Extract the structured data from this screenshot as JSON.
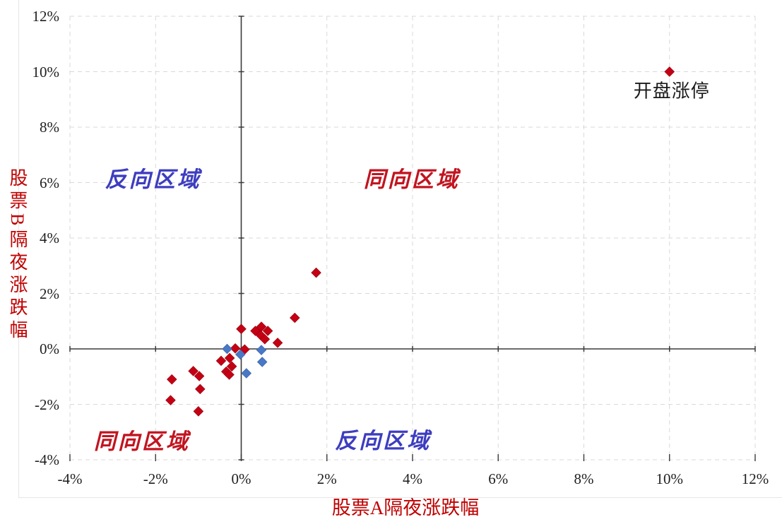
{
  "chart_data": {
    "type": "scatter",
    "title": "",
    "xlabel": "股票A隔夜涨跌幅",
    "ylabel": "股票B隔夜涨跌幅",
    "xlim": [
      -4,
      12
    ],
    "ylim": [
      -4,
      12
    ],
    "x_tick_values": [
      -4,
      -2,
      0,
      2,
      4,
      6,
      8,
      10,
      12
    ],
    "x_tick_labels": [
      "-4%",
      "-2%",
      "0%",
      "2%",
      "4%",
      "6%",
      "8%",
      "10%",
      "12%"
    ],
    "y_tick_values": [
      12,
      10,
      8,
      6,
      4,
      2,
      0,
      -2,
      -4
    ],
    "y_tick_labels": [
      "12%",
      "10%",
      "8%",
      "6%",
      "4%",
      "2%",
      "0%",
      "-2%",
      "-4%"
    ],
    "grid": "dashed",
    "legend": "none",
    "axis_cross": [
      0,
      0
    ],
    "colors": {
      "grid": "#d9d9d9",
      "axis": "#3a3a3a",
      "red_marker": "#c50014",
      "red_marker_edge": "#a00010",
      "blue_marker": "#4979c6",
      "blue_marker_edge": "#3e67ac",
      "axis_title_red": "#c00000",
      "tick_text": "#1f1f1f"
    },
    "series": [
      {
        "name": "red-diamonds",
        "marker": "diamond",
        "color": "#c50014",
        "edge": "#a00010",
        "points": [
          [
            10.0,
            10.0
          ],
          [
            1.75,
            2.75
          ],
          [
            1.25,
            1.12
          ],
          [
            0.85,
            0.22
          ],
          [
            0.0,
            0.72
          ],
          [
            0.33,
            0.65
          ],
          [
            0.47,
            0.8
          ],
          [
            0.62,
            0.65
          ],
          [
            0.45,
            0.5
          ],
          [
            0.55,
            0.35
          ],
          [
            -0.14,
            0.02
          ],
          [
            0.08,
            -0.02
          ],
          [
            -0.47,
            -0.43
          ],
          [
            -0.27,
            -0.33
          ],
          [
            -0.22,
            -0.63
          ],
          [
            -0.35,
            -0.82
          ],
          [
            -0.28,
            -0.93
          ],
          [
            -1.12,
            -0.8
          ],
          [
            -0.98,
            -0.98
          ],
          [
            -0.96,
            -1.45
          ],
          [
            -1.0,
            -2.25
          ],
          [
            -1.62,
            -1.1
          ],
          [
            -1.65,
            -1.85
          ]
        ]
      },
      {
        "name": "blue-diamonds",
        "marker": "diamond",
        "color": "#4979c6",
        "edge": "#3e67ac",
        "points": [
          [
            -0.33,
            0.0
          ],
          [
            -0.02,
            -0.2
          ],
          [
            0.47,
            -0.04
          ],
          [
            0.49,
            -0.47
          ],
          [
            0.12,
            -0.88
          ]
        ]
      }
    ],
    "annotations": [
      {
        "text": "反向区域",
        "x": -2.06,
        "y": 6.2,
        "color": "#3d3dc0",
        "style": "quadrant"
      },
      {
        "text": "同向区域",
        "x": 3.98,
        "y": 6.2,
        "color": "#c21420",
        "style": "quadrant"
      },
      {
        "text": "同向区域",
        "x": -2.32,
        "y": -3.27,
        "color": "#c21420",
        "style": "quadrant"
      },
      {
        "text": "反向区域",
        "x": 3.31,
        "y": -3.24,
        "color": "#3d3dc0",
        "style": "quadrant"
      },
      {
        "text": "开盘涨停",
        "x": 10.05,
        "y": 9.35,
        "color": "#1a1a1a",
        "style": "callout"
      }
    ]
  }
}
